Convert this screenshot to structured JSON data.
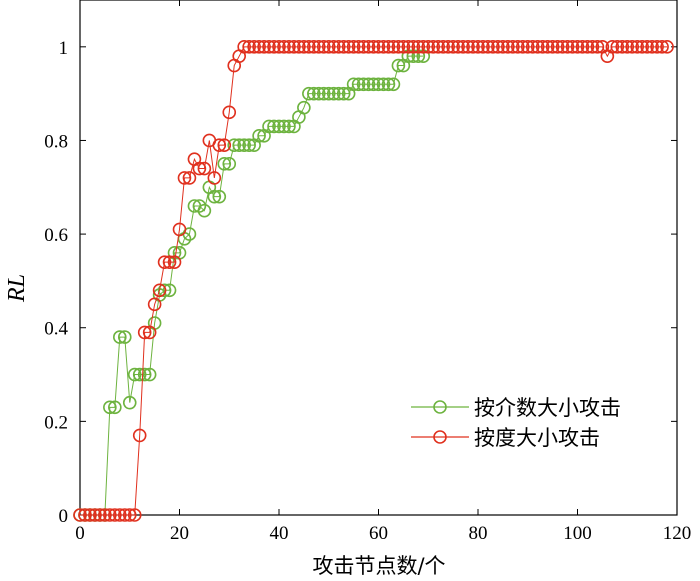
{
  "chart_data": {
    "type": "line",
    "xlabel": "攻击节点数/个",
    "ylabel": "RL",
    "xlim": [
      0,
      120
    ],
    "ylim": [
      0,
      1.1
    ],
    "xticks": [
      "0",
      "20",
      "40",
      "60",
      "80",
      "100",
      "120"
    ],
    "yticks": [
      "0",
      "0.2",
      "0.4",
      "0.6",
      "0.8",
      "1"
    ],
    "grid": false,
    "legend_position": "lower-right",
    "series": [
      {
        "name": "按介数大小攻击",
        "color": "#6db33f",
        "marker": "circle",
        "x": [
          0,
          1,
          2,
          3,
          4,
          5,
          6,
          7,
          8,
          9,
          10,
          11,
          12,
          13,
          14,
          15,
          16,
          17,
          18,
          19,
          20,
          21,
          22,
          23,
          24,
          25,
          26,
          27,
          28,
          29,
          30,
          31,
          32,
          33,
          34,
          35,
          36,
          37,
          38,
          39,
          40,
          41,
          42,
          43,
          44,
          45,
          46,
          47,
          48,
          49,
          50,
          51,
          52,
          53,
          54,
          55,
          56,
          57,
          58,
          59,
          60,
          61,
          62,
          63,
          64,
          65,
          66,
          67,
          68,
          69
        ],
        "y": [
          0,
          0,
          0,
          0,
          0,
          0,
          0.23,
          0.23,
          0.38,
          0.38,
          0.24,
          0.3,
          0.3,
          0.3,
          0.3,
          0.41,
          0.47,
          0.48,
          0.48,
          0.56,
          0.56,
          0.59,
          0.6,
          0.66,
          0.66,
          0.65,
          0.7,
          0.68,
          0.68,
          0.75,
          0.75,
          0.79,
          0.79,
          0.79,
          0.79,
          0.79,
          0.81,
          0.81,
          0.83,
          0.83,
          0.83,
          0.83,
          0.83,
          0.83,
          0.85,
          0.87,
          0.9,
          0.9,
          0.9,
          0.9,
          0.9,
          0.9,
          0.9,
          0.9,
          0.9,
          0.92,
          0.92,
          0.92,
          0.92,
          0.92,
          0.92,
          0.92,
          0.92,
          0.92,
          0.96,
          0.96,
          0.98,
          0.98,
          0.98,
          0.98
        ]
      },
      {
        "name": "按度大小攻击",
        "color": "#e0301e",
        "marker": "circle",
        "x": [
          0,
          1,
          2,
          3,
          4,
          5,
          6,
          7,
          8,
          9,
          10,
          11,
          12,
          13,
          14,
          15,
          16,
          17,
          18,
          19,
          20,
          21,
          22,
          23,
          24,
          25,
          26,
          27,
          28,
          29,
          30,
          31,
          32,
          33,
          34,
          35,
          36,
          37,
          38,
          39,
          40,
          41,
          42,
          43,
          44,
          45,
          46,
          47,
          48,
          49,
          50,
          51,
          52,
          53,
          54,
          55,
          56,
          57,
          58,
          59,
          60,
          61,
          62,
          63,
          64,
          65,
          66,
          67,
          68,
          69,
          70,
          71,
          72,
          73,
          74,
          75,
          76,
          77,
          78,
          79,
          80,
          81,
          82,
          83,
          84,
          85,
          86,
          87,
          88,
          89,
          90,
          91,
          92,
          93,
          94,
          95,
          96,
          97,
          98,
          99,
          100,
          101,
          102,
          103,
          104,
          105,
          106,
          107,
          108,
          109,
          110,
          111,
          112,
          113,
          114,
          115,
          116,
          117,
          118
        ],
        "y": [
          0,
          0,
          0,
          0,
          0,
          0,
          0,
          0,
          0,
          0,
          0,
          0,
          0.17,
          0.39,
          0.39,
          0.45,
          0.48,
          0.54,
          0.54,
          0.54,
          0.61,
          0.72,
          0.72,
          0.76,
          0.74,
          0.74,
          0.8,
          0.72,
          0.79,
          0.79,
          0.86,
          0.96,
          0.98,
          1,
          1,
          1,
          1,
          1,
          1,
          1,
          1,
          1,
          1,
          1,
          1,
          1,
          1,
          1,
          1,
          1,
          1,
          1,
          1,
          1,
          1,
          1,
          1,
          1,
          1,
          1,
          1,
          1,
          1,
          1,
          1,
          1,
          1,
          1,
          1,
          1,
          1,
          1,
          1,
          1,
          1,
          1,
          1,
          1,
          1,
          1,
          1,
          1,
          1,
          1,
          1,
          1,
          1,
          1,
          1,
          1,
          1,
          1,
          1,
          1,
          1,
          1,
          1,
          1,
          1,
          1,
          1,
          1,
          1,
          1,
          1,
          1,
          0.98,
          1,
          1,
          1,
          1,
          1,
          1,
          1,
          1,
          1,
          1,
          1,
          1
        ]
      }
    ]
  }
}
